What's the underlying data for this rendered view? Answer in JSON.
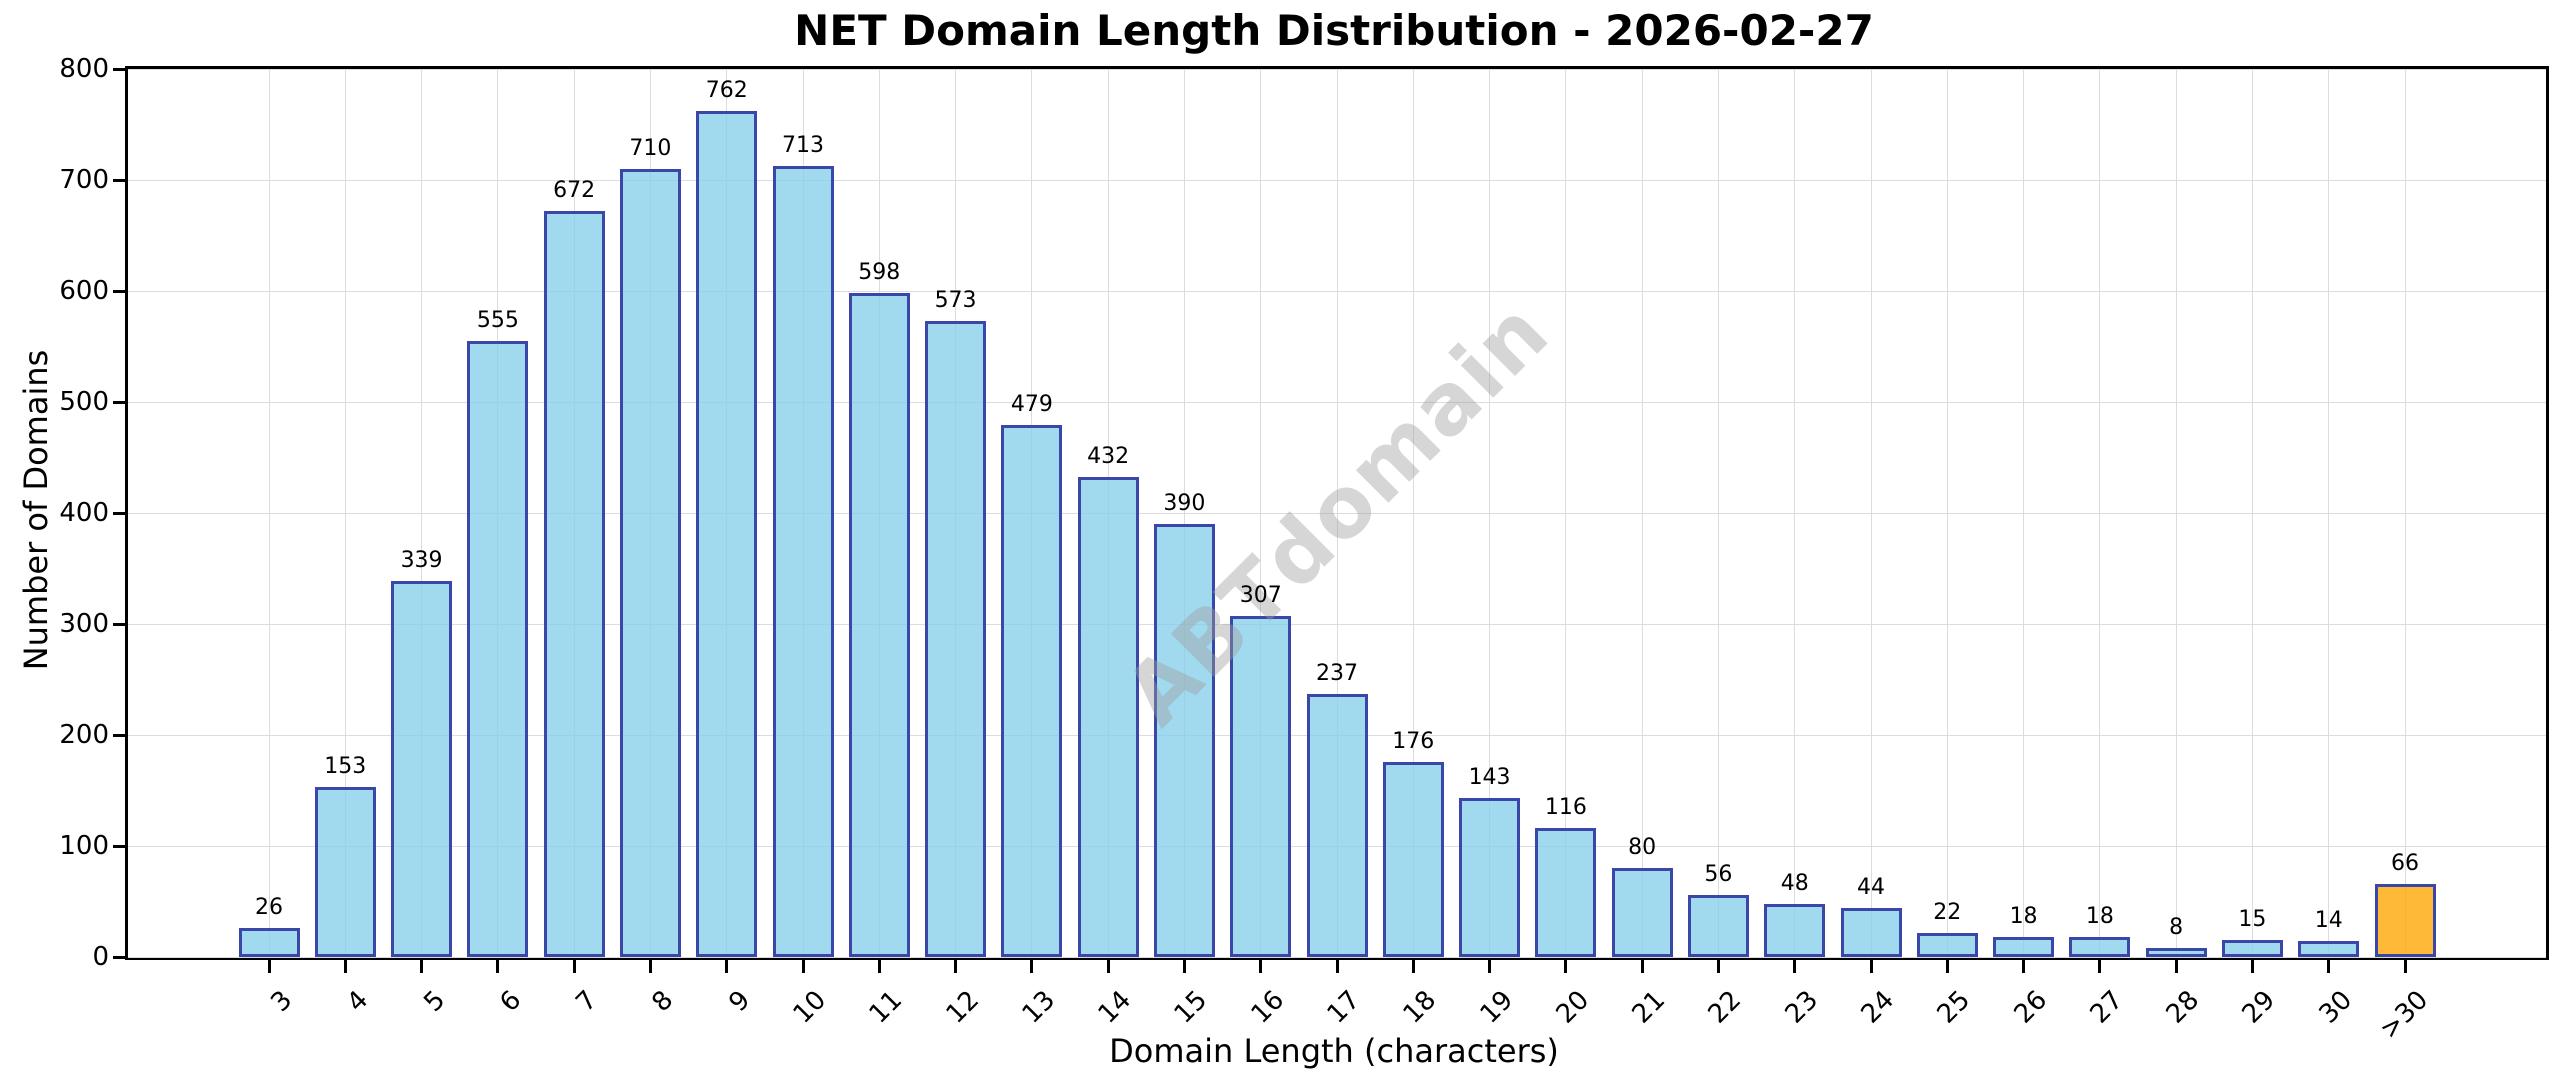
{
  "chart_data": {
    "type": "bar",
    "title": "NET Domain Length Distribution - 2026-02-27",
    "xlabel": "Domain Length (characters)",
    "ylabel": "Number of Domains",
    "categories": [
      "3",
      "4",
      "5",
      "6",
      "7",
      "8",
      "9",
      "10",
      "11",
      "12",
      "13",
      "14",
      "15",
      "16",
      "17",
      "18",
      "19",
      "20",
      "21",
      "22",
      "23",
      "24",
      "25",
      "26",
      "27",
      "28",
      "29",
      "30",
      ">30"
    ],
    "values": [
      26,
      153,
      339,
      555,
      672,
      710,
      762,
      713,
      598,
      573,
      479,
      432,
      390,
      307,
      237,
      176,
      143,
      116,
      80,
      56,
      48,
      44,
      22,
      18,
      18,
      8,
      15,
      14,
      66
    ],
    "y_ticks": [
      0,
      100,
      200,
      300,
      400,
      500,
      600,
      700,
      800
    ],
    "ylim": [
      0,
      800
    ],
    "grid": true,
    "bar_value_labels": true,
    "legend": "none",
    "highlight_category": ">30",
    "watermark": "ABTdomain",
    "colors": {
      "bar_fill": "#87CEEB",
      "highlight_fill": "#FFA500",
      "bar_edge": "#3A47A8",
      "grid": "#DCDCDC",
      "watermark": "#9E9E9E",
      "text": "#000000"
    },
    "bar_fill_alpha": 0.78
  }
}
